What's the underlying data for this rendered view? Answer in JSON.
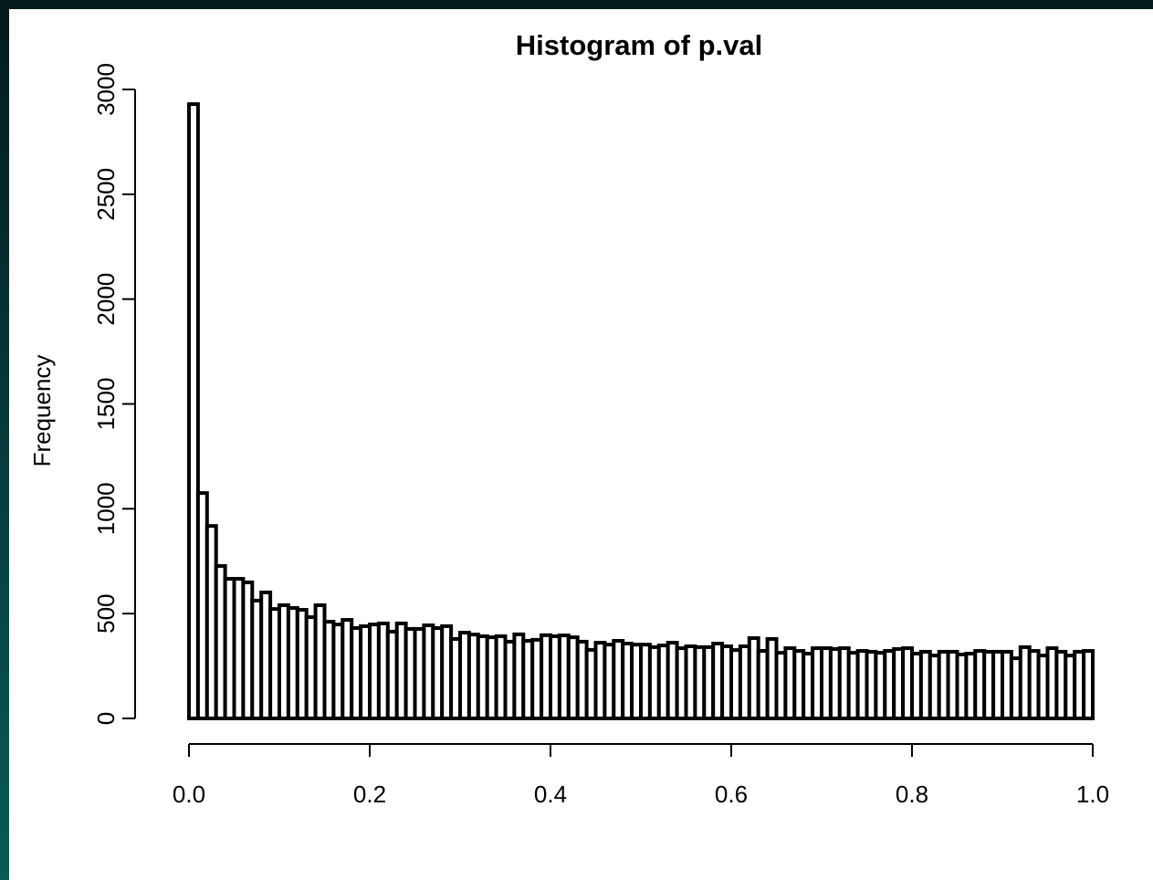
{
  "chart_data": {
    "type": "histogram",
    "title": "Histogram of p.val",
    "y_label": "Frequency",
    "bins": [
      0,
      0.01,
      0.02,
      0.03,
      0.04,
      0.05,
      0.06,
      0.07,
      0.08,
      0.09,
      0.1,
      0.11,
      0.12,
      0.13,
      0.14,
      0.15,
      0.16,
      0.17,
      0.18,
      0.19,
      0.2,
      0.21,
      0.22,
      0.23,
      0.24,
      0.25,
      0.26,
      0.27,
      0.28,
      0.29,
      0.3,
      0.31,
      0.32,
      0.33,
      0.34,
      0.35,
      0.36,
      0.37,
      0.38,
      0.39,
      0.4,
      0.41,
      0.42,
      0.43,
      0.44,
      0.45,
      0.46,
      0.47,
      0.48,
      0.49,
      0.5,
      0.51,
      0.52,
      0.53,
      0.54,
      0.55,
      0.56,
      0.57,
      0.58,
      0.59,
      0.6,
      0.61,
      0.62,
      0.63,
      0.64,
      0.65,
      0.66,
      0.67,
      0.68,
      0.69,
      0.7,
      0.71,
      0.72,
      0.73,
      0.74,
      0.75,
      0.76,
      0.77,
      0.78,
      0.79,
      0.8,
      0.81,
      0.82,
      0.83,
      0.84,
      0.85,
      0.86,
      0.87,
      0.88,
      0.89,
      0.9,
      0.91,
      0.92,
      0.93,
      0.94,
      0.95,
      0.96,
      0.97,
      0.98,
      0.99,
      1
    ],
    "values": [
      2930,
      1075,
      918,
      727,
      666,
      666,
      649,
      562,
      601,
      522,
      540,
      527,
      518,
      483,
      540,
      461,
      448,
      470,
      431,
      440,
      448,
      453,
      414,
      453,
      427,
      427,
      444,
      431,
      440,
      379,
      409,
      400,
      392,
      387,
      392,
      366,
      401,
      370,
      375,
      397,
      392,
      396,
      387,
      366,
      327,
      361,
      352,
      370,
      357,
      352,
      352,
      340,
      348,
      361,
      335,
      344,
      340,
      340,
      357,
      344,
      326,
      344,
      383,
      322,
      379,
      313,
      335,
      322,
      309,
      335,
      335,
      331,
      335,
      313,
      322,
      318,
      313,
      322,
      331,
      335,
      309,
      318,
      300,
      318,
      318,
      305,
      309,
      322,
      318,
      318,
      318,
      287,
      340,
      322,
      300,
      335,
      318,
      300,
      318,
      322
    ],
    "color": "#ffffff",
    "edge_color": "#000000",
    "xlim": [
      0,
      1
    ],
    "xticks": [
      {
        "value": 0,
        "label": "0.0"
      },
      0.2,
      0.4,
      0.6,
      0.8,
      {
        "value": 1,
        "label": "1.0"
      }
    ],
    "ylim": [
      0,
      3000
    ],
    "yticks": [
      0,
      500,
      1000,
      1500,
      2000,
      2500,
      3000
    ]
  }
}
